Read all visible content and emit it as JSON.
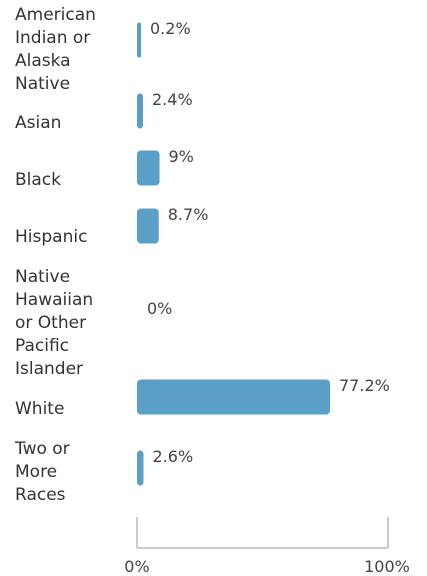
{
  "chart_data": {
    "type": "bar",
    "orientation": "horizontal",
    "categories": [
      "American Indian or Alaska Native",
      "Asian",
      "Black",
      "Hispanic",
      "Native Hawaiian or Other Pacific Islander",
      "White",
      "Two or More Races"
    ],
    "category_lines": [
      [
        "American",
        "Indian or",
        "Alaska",
        "Native"
      ],
      [
        "Asian"
      ],
      [
        "Black"
      ],
      [
        "Hispanic"
      ],
      [
        "Native",
        "Hawaiian",
        "or Other",
        "Pacific",
        "Islander"
      ],
      [
        "White"
      ],
      [
        "Two or",
        "More",
        "Races"
      ]
    ],
    "values": [
      0.2,
      2.4,
      9,
      8.7,
      0,
      77.2,
      2.6
    ],
    "value_labels": [
      "0.2%",
      "2.4%",
      "9%",
      "8.7%",
      "0%",
      "77.2%",
      "2.6%"
    ],
    "xlim": [
      0,
      100
    ],
    "ticks": [
      "0%",
      "100%"
    ],
    "bar_color": "#5b9ec6",
    "grid": false,
    "legend": "none"
  }
}
